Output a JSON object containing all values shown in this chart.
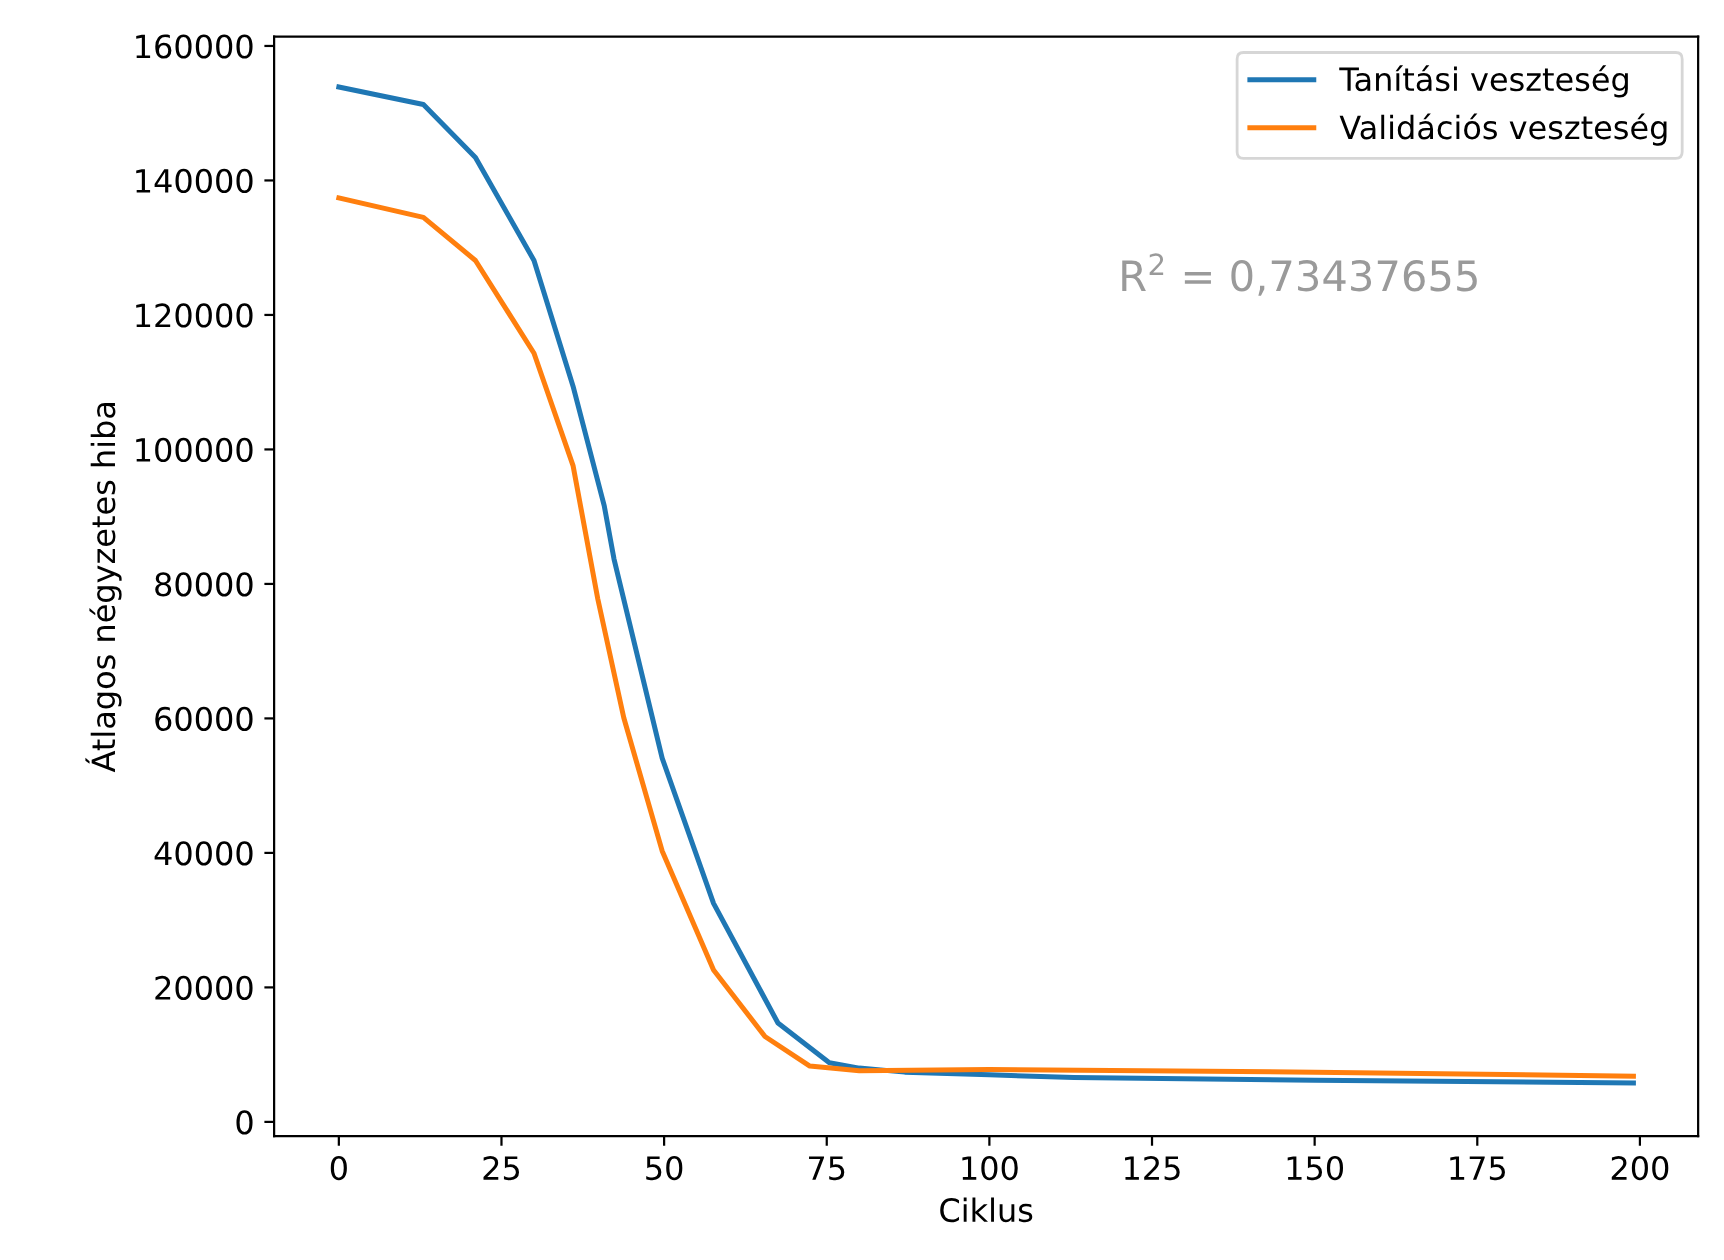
{
  "chart_data": {
    "type": "line",
    "xlabel": "Ciklus",
    "ylabel": "Átlagos négyzetes hiba",
    "xlim": [
      -9.95,
      208.95
    ],
    "xticks": [
      0,
      25,
      50,
      75,
      100,
      125,
      150,
      175,
      200
    ],
    "ylim": [
      -2100,
      161400
    ],
    "yticks": [
      0,
      20000,
      40000,
      60000,
      80000,
      100000,
      120000,
      140000,
      160000
    ],
    "legend": "top right",
    "grid": false,
    "annotations": [
      "R$^{2}$ = 0,73437655"
    ],
    "series": [
      {
        "name": "Tanítási veszteség",
        "color": "#1f77b4",
        "x": [
          0,
          13,
          21,
          30,
          36,
          40.8,
          42.3,
          49.7,
          57.6,
          67.5,
          75.4,
          80,
          87,
          100,
          113,
          150,
          199
        ],
        "values": [
          153900,
          151300,
          143400,
          128100,
          109400,
          91600,
          83700,
          54100,
          32500,
          14700,
          8800,
          8000,
          7400,
          7000,
          6600,
          6200,
          5800
        ]
      },
      {
        "name": "Validációs veszteség",
        "color": "#ff7f0e",
        "x": [
          0,
          13,
          21,
          30,
          36,
          39.8,
          43.8,
          49.7,
          57.6,
          65.5,
          72.4,
          80,
          100,
          150,
          199
        ],
        "values": [
          137400,
          134500,
          128100,
          114300,
          97600,
          77800,
          60100,
          40300,
          22600,
          12700,
          8300,
          7600,
          7800,
          7400,
          6800
        ]
      }
    ]
  }
}
